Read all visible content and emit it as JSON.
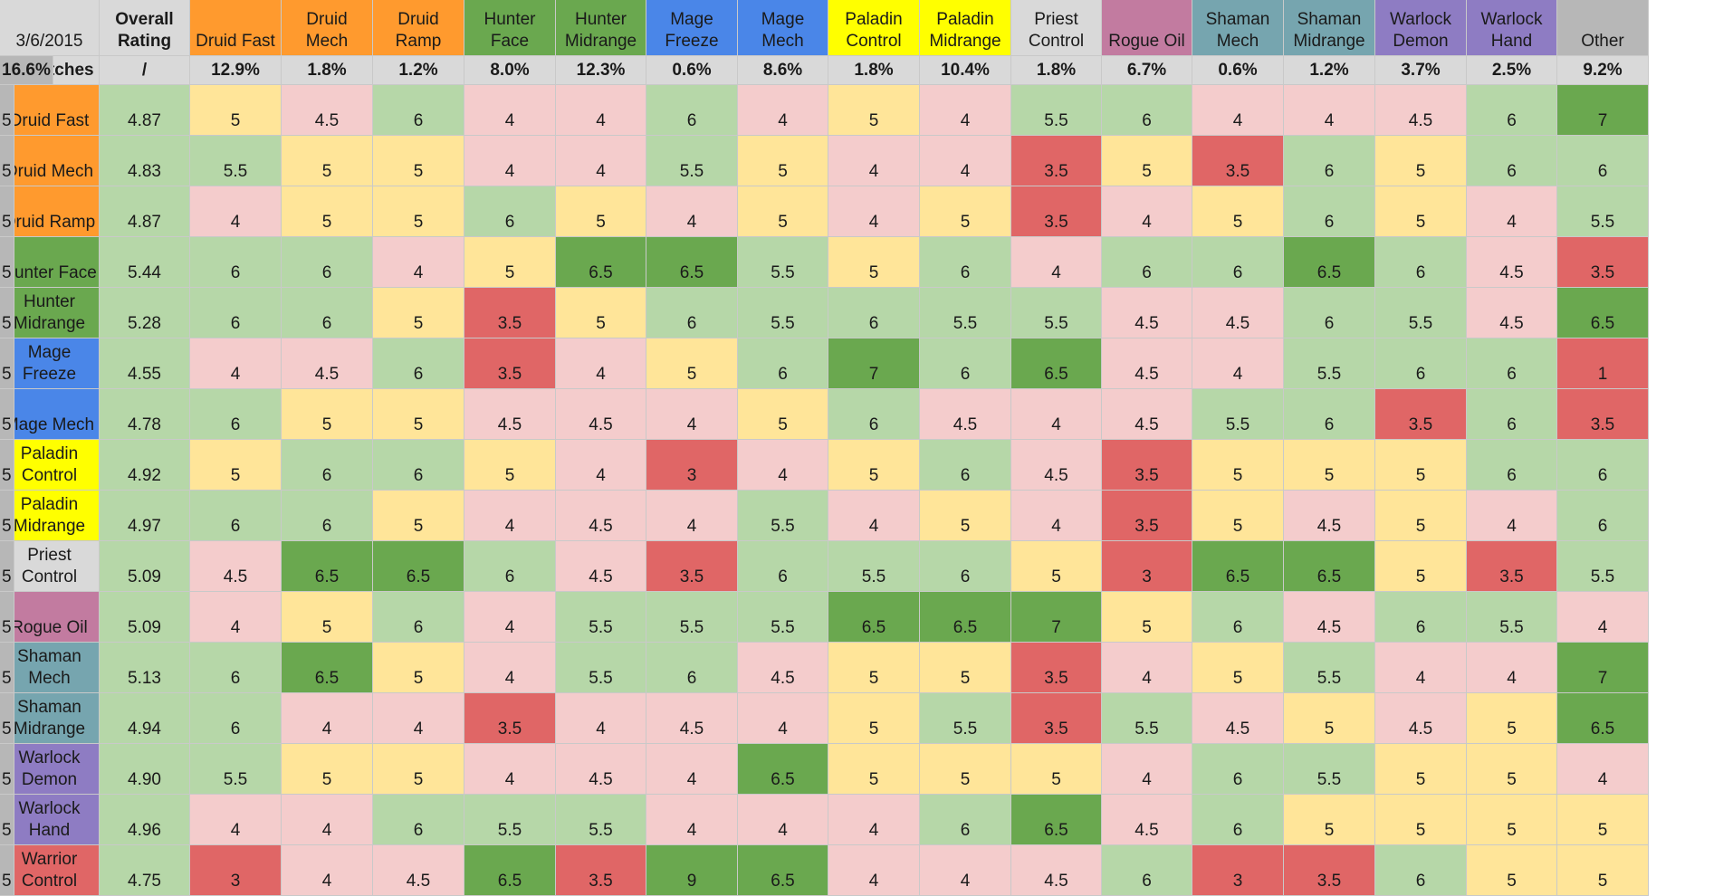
{
  "header": {
    "corner": "3/6/2015",
    "overall": "Overall Rating",
    "other": "Other",
    "pct_label": "% Matches",
    "pct_overall": "/"
  },
  "decks": [
    {
      "name": "Druid Fast",
      "color": "#ff9a2e"
    },
    {
      "name": "Druid Mech",
      "color": "#ff9a2e"
    },
    {
      "name": "Druid Ramp",
      "color": "#ff9a2e"
    },
    {
      "name": "Hunter Face",
      "color": "#6aa84f"
    },
    {
      "name": "Hunter Midrange",
      "color": "#6aa84f"
    },
    {
      "name": "Mage Freeze",
      "color": "#4a86e8"
    },
    {
      "name": "Mage Mech",
      "color": "#4a86e8"
    },
    {
      "name": "Paladin Control",
      "color": "#ffff00"
    },
    {
      "name": "Paladin Midrange",
      "color": "#ffff00"
    },
    {
      "name": "Priest Control",
      "color": "#d9d9d9"
    },
    {
      "name": "Rogue Oil",
      "color": "#c27ba0"
    },
    {
      "name": "Shaman Mech",
      "color": "#76a5af"
    },
    {
      "name": "Shaman Midrange",
      "color": "#76a5af"
    },
    {
      "name": "Warlock Demon",
      "color": "#8e7cc3"
    },
    {
      "name": "Warlock Hand",
      "color": "#8e7cc3"
    },
    {
      "name": "Warrior Control",
      "color": "#e06666"
    }
  ],
  "row_labels": [
    "Druid Fast",
    "Druid Mech",
    "Druid Ramp",
    "Hunter Face",
    "Hunter Midrange",
    "Mage Freeze",
    "Mage Mech",
    "Paladin Control",
    "Paladin Midrange",
    "Priest Control",
    "Rogue Oil",
    "Shaman Mech",
    "Shaman Midrange",
    "Warlock Demon",
    "Warlock Hand",
    "Warrior Control"
  ],
  "pct_matches": [
    "12.9%",
    "1.8%",
    "1.2%",
    "8.0%",
    "12.3%",
    "0.6%",
    "8.6%",
    "1.8%",
    "10.4%",
    "1.8%",
    "6.7%",
    "0.6%",
    "1.2%",
    "3.7%",
    "2.5%",
    "9.2%",
    "16.6%"
  ],
  "ratings": [
    "4.87",
    "4.83",
    "4.87",
    "5.44",
    "5.28",
    "4.55",
    "4.78",
    "4.92",
    "4.97",
    "5.09",
    "5.09",
    "5.13",
    "4.94",
    "4.90",
    "4.96",
    "4.75"
  ],
  "matrix": [
    [
      "5",
      "4.5",
      "6",
      "4",
      "4",
      "6",
      "4",
      "5",
      "4",
      "5.5",
      "6",
      "4",
      "4",
      "4.5",
      "6",
      "7",
      "5"
    ],
    [
      "5.5",
      "5",
      "5",
      "4",
      "4",
      "5.5",
      "5",
      "4",
      "4",
      "3.5",
      "5",
      "3.5",
      "6",
      "5",
      "6",
      "6",
      "5"
    ],
    [
      "4",
      "5",
      "5",
      "6",
      "5",
      "4",
      "5",
      "4",
      "5",
      "3.5",
      "4",
      "5",
      "6",
      "5",
      "4",
      "5.5",
      "5"
    ],
    [
      "6",
      "6",
      "4",
      "5",
      "6.5",
      "6.5",
      "5.5",
      "5",
      "6",
      "4",
      "6",
      "6",
      "6.5",
      "6",
      "4.5",
      "3.5",
      "5"
    ],
    [
      "6",
      "6",
      "5",
      "3.5",
      "5",
      "6",
      "5.5",
      "6",
      "5.5",
      "5.5",
      "4.5",
      "4.5",
      "6",
      "5.5",
      "4.5",
      "6.5",
      "5"
    ],
    [
      "4",
      "4.5",
      "6",
      "3.5",
      "4",
      "5",
      "6",
      "7",
      "6",
      "6.5",
      "4.5",
      "4",
      "5.5",
      "6",
      "6",
      "1",
      "5"
    ],
    [
      "6",
      "5",
      "5",
      "4.5",
      "4.5",
      "4",
      "5",
      "6",
      "4.5",
      "4",
      "4.5",
      "5.5",
      "6",
      "3.5",
      "6",
      "3.5",
      "5"
    ],
    [
      "5",
      "6",
      "6",
      "5",
      "4",
      "3",
      "4",
      "5",
      "6",
      "4.5",
      "3.5",
      "5",
      "5",
      "5",
      "6",
      "6",
      "5"
    ],
    [
      "6",
      "6",
      "5",
      "4",
      "4.5",
      "4",
      "5.5",
      "4",
      "5",
      "4",
      "3.5",
      "5",
      "4.5",
      "5",
      "4",
      "6",
      "5"
    ],
    [
      "4.5",
      "6.5",
      "6.5",
      "6",
      "4.5",
      "3.5",
      "6",
      "5.5",
      "6",
      "5",
      "3",
      "6.5",
      "6.5",
      "5",
      "3.5",
      "5.5",
      "5"
    ],
    [
      "4",
      "5",
      "6",
      "4",
      "5.5",
      "5.5",
      "5.5",
      "6.5",
      "6.5",
      "7",
      "5",
      "6",
      "4.5",
      "6",
      "5.5",
      "4",
      "5"
    ],
    [
      "6",
      "6.5",
      "5",
      "4",
      "5.5",
      "6",
      "4.5",
      "5",
      "5",
      "3.5",
      "4",
      "5",
      "5.5",
      "4",
      "4",
      "7",
      "5"
    ],
    [
      "6",
      "4",
      "4",
      "3.5",
      "4",
      "4.5",
      "4",
      "5",
      "5.5",
      "3.5",
      "5.5",
      "4.5",
      "5",
      "4.5",
      "5",
      "6.5",
      "5"
    ],
    [
      "5.5",
      "5",
      "5",
      "4",
      "4.5",
      "4",
      "6.5",
      "5",
      "5",
      "5",
      "4",
      "6",
      "5.5",
      "5",
      "5",
      "4",
      "5"
    ],
    [
      "4",
      "4",
      "6",
      "5.5",
      "5.5",
      "4",
      "4",
      "4",
      "6",
      "6.5",
      "4.5",
      "6",
      "5",
      "5",
      "5",
      "5",
      "5"
    ],
    [
      "3",
      "4",
      "4.5",
      "6.5",
      "3.5",
      "9",
      "6.5",
      "4",
      "4",
      "4.5",
      "6",
      "3",
      "3.5",
      "6",
      "5",
      "5",
      "5"
    ]
  ],
  "colors": {
    "label_grey": "#d9d9d9",
    "rating_green": "#b6d7a8",
    "other_grey": "#b7b7b7",
    "strong_red": "#e06666",
    "light_red": "#f4cccc",
    "neutral_yellow": "#ffe599",
    "light_green": "#b6d7a8",
    "strong_green": "#6aa84f"
  }
}
